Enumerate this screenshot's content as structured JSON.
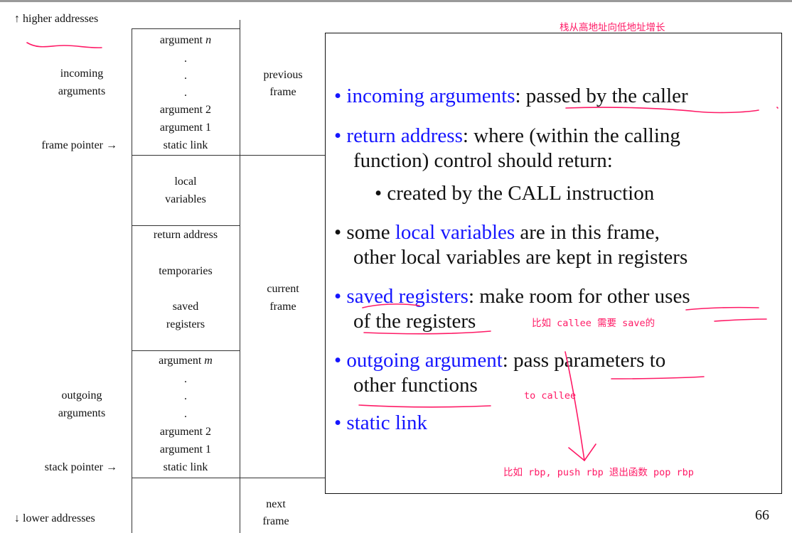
{
  "left_labels": {
    "higher": "↑ higher addresses",
    "incoming1": "incoming",
    "incoming2": "arguments",
    "frame_pointer": "frame pointer →",
    "outgoing1": "outgoing",
    "outgoing2": "arguments",
    "stack_pointer": "stack pointer →",
    "lower": "↓ lower addresses"
  },
  "stack": {
    "prev": {
      "arg_n_prefix": "argument ",
      "arg_n_var": "n",
      "dot": ".",
      "arg2": "argument 2",
      "arg1": "argument 1",
      "static_link": "static link"
    },
    "locals1": "local",
    "locals2": "variables",
    "return_address": "return address",
    "temporaries": "temporaries",
    "saved1": "saved",
    "saved2": "registers",
    "out": {
      "arg_m_prefix": "argument ",
      "arg_m_var": "m",
      "dot": ".",
      "arg2": "argument 2",
      "arg1": "argument 1",
      "static_link": "static link"
    }
  },
  "frames": {
    "prev1": "previous",
    "prev2": "frame",
    "cur1": "current",
    "cur2": "frame",
    "next1": "next",
    "next2": "frame"
  },
  "bullets": {
    "b1_term": "incoming arguments",
    "b1_rest": ": passed by the caller",
    "b2_term": "return address",
    "b2_rest": ": where (within the calling",
    "b2_line2": "function) control should return:",
    "b2_sub": "created by the CALL instruction",
    "b3_pre": "some ",
    "b3_term": "local variables",
    "b3_rest": " are in this frame,",
    "b3_line2": "other local variables are kept in registers",
    "b4_term": "saved registers",
    "b4_rest": ": make room for other uses",
    "b4_line2": "of the registers",
    "b5_term": "outgoing argument",
    "b5_rest": ": pass parameters to",
    "b5_line2": "other functions",
    "b6_term": "static link",
    "bullet_char": "•"
  },
  "annotations": {
    "top": "栈从高地址向低地址增长",
    "saved": "比如 callee 需要 save的",
    "callee": "to callee",
    "rbp": "比如 rbp, push rbp 退出函数 pop rbp"
  },
  "page_number": "66",
  "colors": {
    "blue": "#1515ff",
    "pink": "#ff1a66"
  }
}
